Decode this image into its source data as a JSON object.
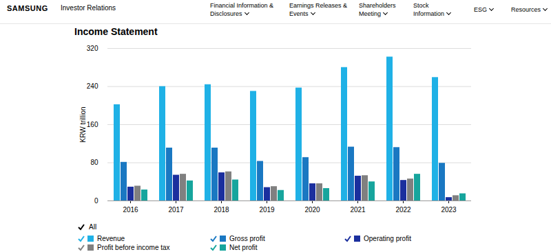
{
  "header": {
    "brand": "SAMSUNG",
    "section": "Investor Relations",
    "nav": [
      [
        "Financial Information &",
        "Disclosures"
      ],
      [
        "Earnings Releases &",
        "Events"
      ],
      [
        "Shareholders",
        "Meeting"
      ],
      [
        "Stock",
        "Information"
      ],
      [
        "ESG"
      ],
      [
        "Resources"
      ]
    ]
  },
  "legend_toggle": "All",
  "chart_data": {
    "type": "bar",
    "title": "Income Statement",
    "y_label": "KRW trillion",
    "categories": [
      "2016",
      "2017",
      "2018",
      "2019",
      "2020",
      "2021",
      "2022",
      "2023"
    ],
    "series": [
      {
        "name": "Revenue",
        "color": "#1fb1e6",
        "values": [
          202,
          240,
          244,
          230,
          237,
          280,
          302,
          259
        ]
      },
      {
        "name": "Gross profit",
        "color": "#1a78c2",
        "values": [
          81,
          111,
          111,
          83,
          91,
          113,
          112,
          79
        ]
      },
      {
        "name": "Operating profit",
        "color": "#1b2f9e",
        "values": [
          29,
          54,
          59,
          28,
          36,
          52,
          43,
          7
        ]
      },
      {
        "name": "Profit before income tax",
        "color": "#808080",
        "values": [
          31,
          56,
          61,
          30,
          36,
          53,
          46,
          11
        ]
      },
      {
        "name": "Net profit",
        "color": "#17a59d",
        "values": [
          23,
          42,
          44,
          22,
          26,
          40,
          56,
          15
        ]
      }
    ],
    "ylim": [
      0,
      320
    ],
    "yticks": [
      0,
      80,
      160,
      240,
      320
    ],
    "grid": true,
    "legend": "bottom"
  }
}
